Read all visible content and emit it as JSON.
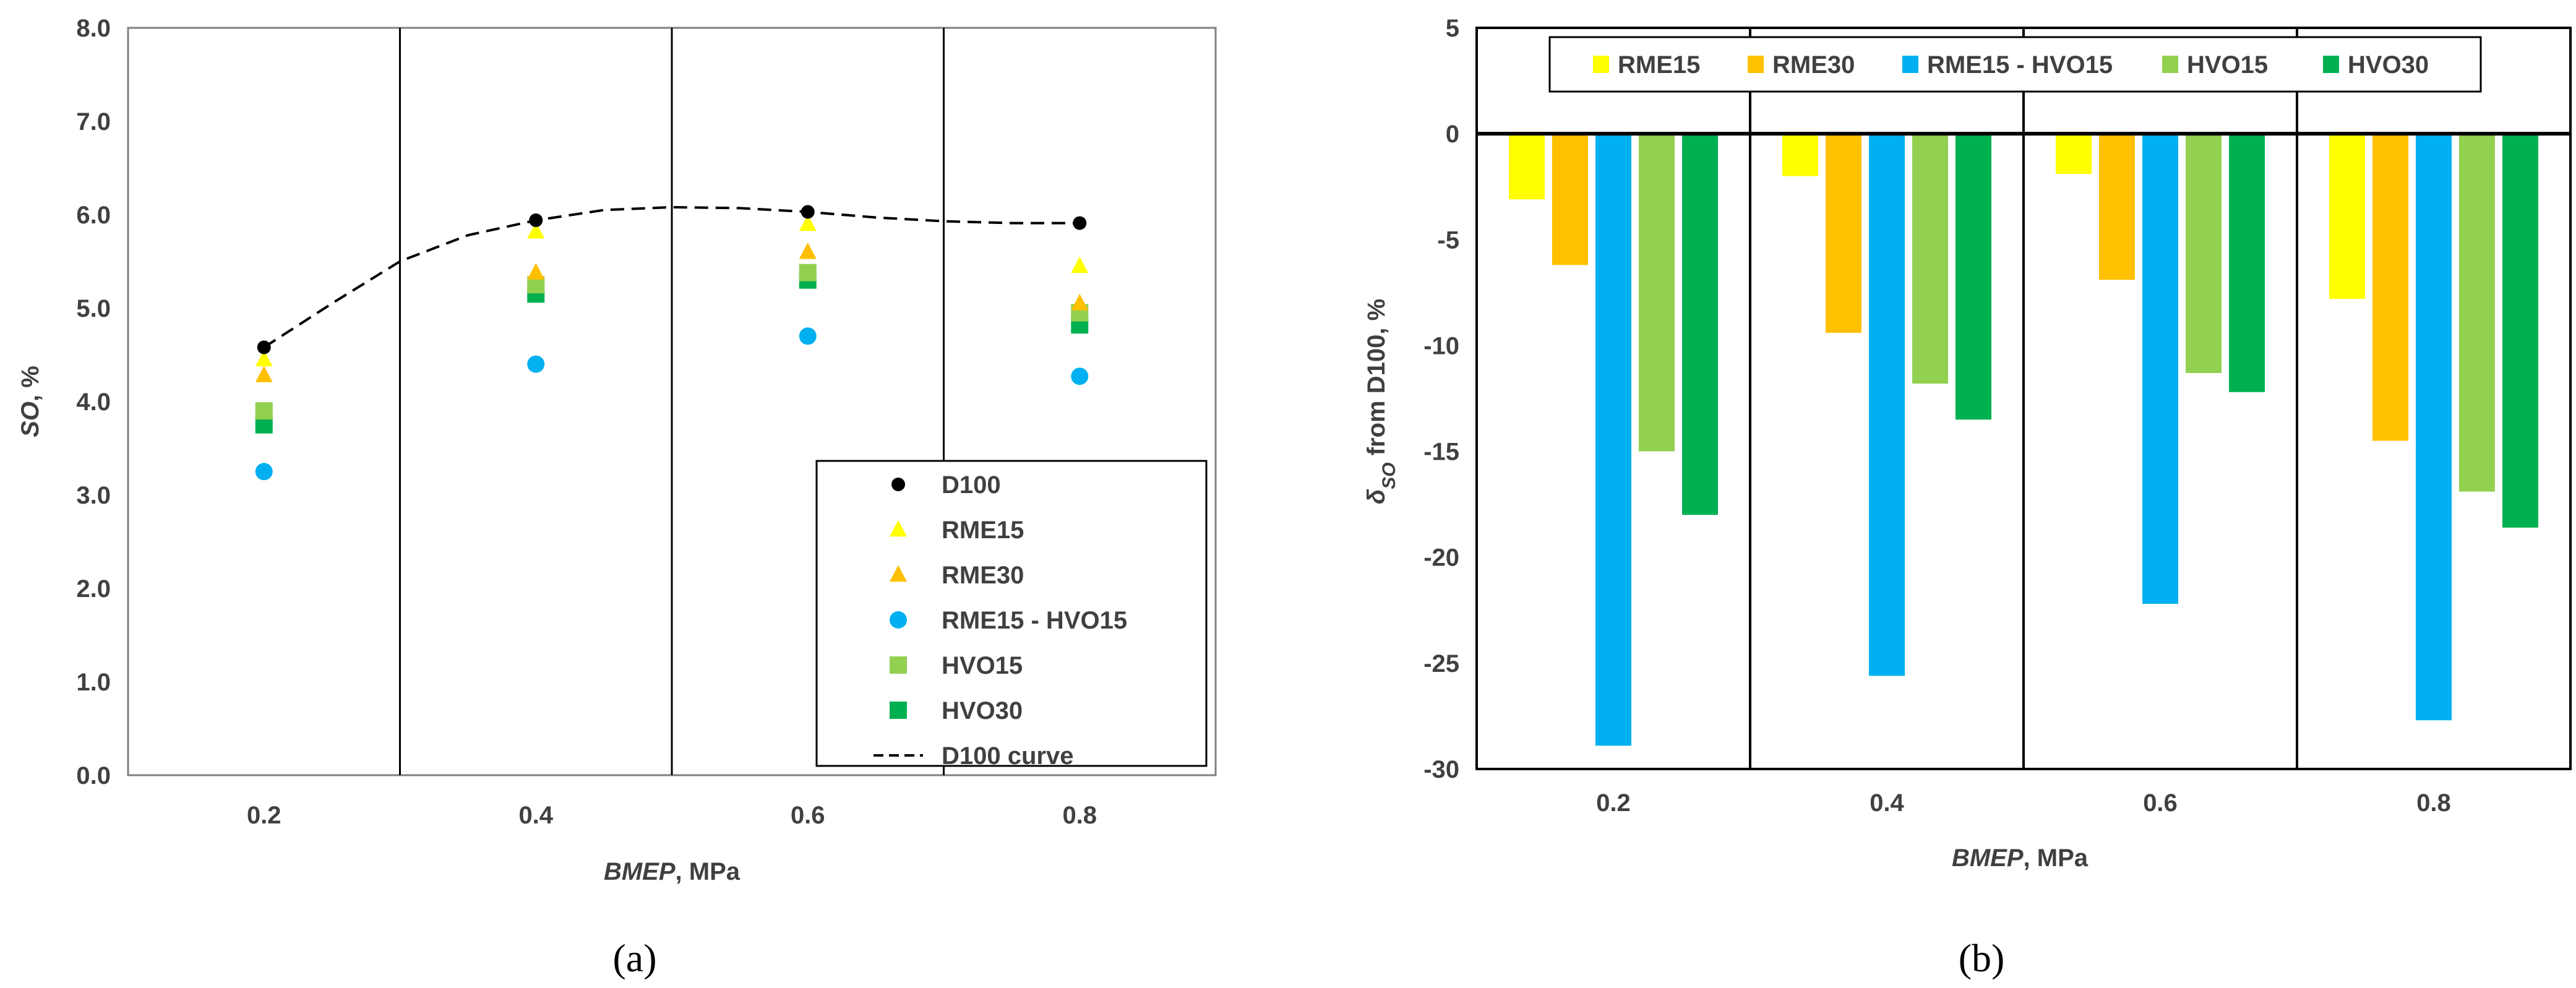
{
  "colors": {
    "D100": "#000000",
    "RME15": "#ffff00",
    "RME30": "#ffc000",
    "RME15 - HVO15": "#00b0f0",
    "HVO15": "#92d050",
    "HVO30": "#00b050"
  },
  "chart_data": [
    {
      "type": "scatter",
      "caption": "(a)",
      "xlabel_italic": "BMEP",
      "xlabel_rest": ", MPa",
      "ylabel_italic": "SO",
      "ylabel_rest": ", %",
      "x": [
        0.2,
        0.4,
        0.6,
        0.8
      ],
      "x_tick_labels": [
        "0.2",
        "0.4",
        "0.6",
        "0.8"
      ],
      "y_tick_labels": [
        "0.0",
        "1.0",
        "2.0",
        "3.0",
        "4.0",
        "5.0",
        "6.0",
        "7.0",
        "8.0"
      ],
      "ylim": [
        0,
        8
      ],
      "series": [
        {
          "name": "D100",
          "marker": "circle",
          "values": [
            4.58,
            5.94,
            6.03,
            5.91
          ]
        },
        {
          "name": "RME15",
          "marker": "triangle",
          "values": [
            4.45,
            5.82,
            5.9,
            5.45
          ]
        },
        {
          "name": "RME30",
          "marker": "triangle",
          "values": [
            4.28,
            5.38,
            5.6,
            5.05
          ]
        },
        {
          "name": "RME15 - HVO15",
          "marker": "circle",
          "values": [
            3.25,
            4.4,
            4.7,
            4.27
          ]
        },
        {
          "name": "HVO15",
          "marker": "square",
          "values": [
            3.9,
            5.25,
            5.38,
            4.95
          ]
        },
        {
          "name": "HVO30",
          "marker": "square",
          "values": [
            3.75,
            5.15,
            5.3,
            4.82
          ]
        }
      ],
      "curve": {
        "name": "D100 curve",
        "x": [
          0.2,
          0.25,
          0.3,
          0.35,
          0.4,
          0.45,
          0.5,
          0.55,
          0.6,
          0.65,
          0.7,
          0.75,
          0.8
        ],
        "values": [
          4.58,
          5.05,
          5.5,
          5.78,
          5.94,
          6.05,
          6.08,
          6.07,
          6.03,
          5.97,
          5.93,
          5.91,
          5.91
        ]
      },
      "legend": [
        "D100",
        "RME15",
        "RME30",
        "RME15 - HVO15",
        "HVO15",
        "HVO30",
        "D100 curve"
      ],
      "legend_position": "bottom-right"
    },
    {
      "type": "bar",
      "caption": "(b)",
      "xlabel_italic": "BMEP",
      "xlabel_rest": ", MPa",
      "ylabel_prefix": "δ",
      "ylabel_sub": "SO",
      "ylabel_rest": " from D100, %",
      "categories": [
        "0.2",
        "0.4",
        "0.6",
        "0.8"
      ],
      "y_tick_labels": [
        "5",
        "0",
        "-5",
        "-10",
        "-15",
        "-20",
        "-25",
        "-30"
      ],
      "ylim": [
        -30,
        5
      ],
      "series": [
        {
          "name": "RME15",
          "values": [
            -3.1,
            -2.0,
            -1.9,
            -7.8
          ]
        },
        {
          "name": "RME30",
          "values": [
            -6.2,
            -9.4,
            -6.9,
            -14.5
          ]
        },
        {
          "name": "RME15 - HVO15",
          "values": [
            -28.9,
            -25.6,
            -22.2,
            -27.7
          ]
        },
        {
          "name": "HVO15",
          "values": [
            -15.0,
            -11.8,
            -11.3,
            -16.9
          ]
        },
        {
          "name": "HVO30",
          "values": [
            -18.0,
            -13.5,
            -12.2,
            -18.6
          ]
        }
      ],
      "legend": [
        "RME15",
        "RME30",
        "RME15 - HVO15",
        "HVO15",
        "HVO30"
      ],
      "legend_position": "top"
    }
  ]
}
